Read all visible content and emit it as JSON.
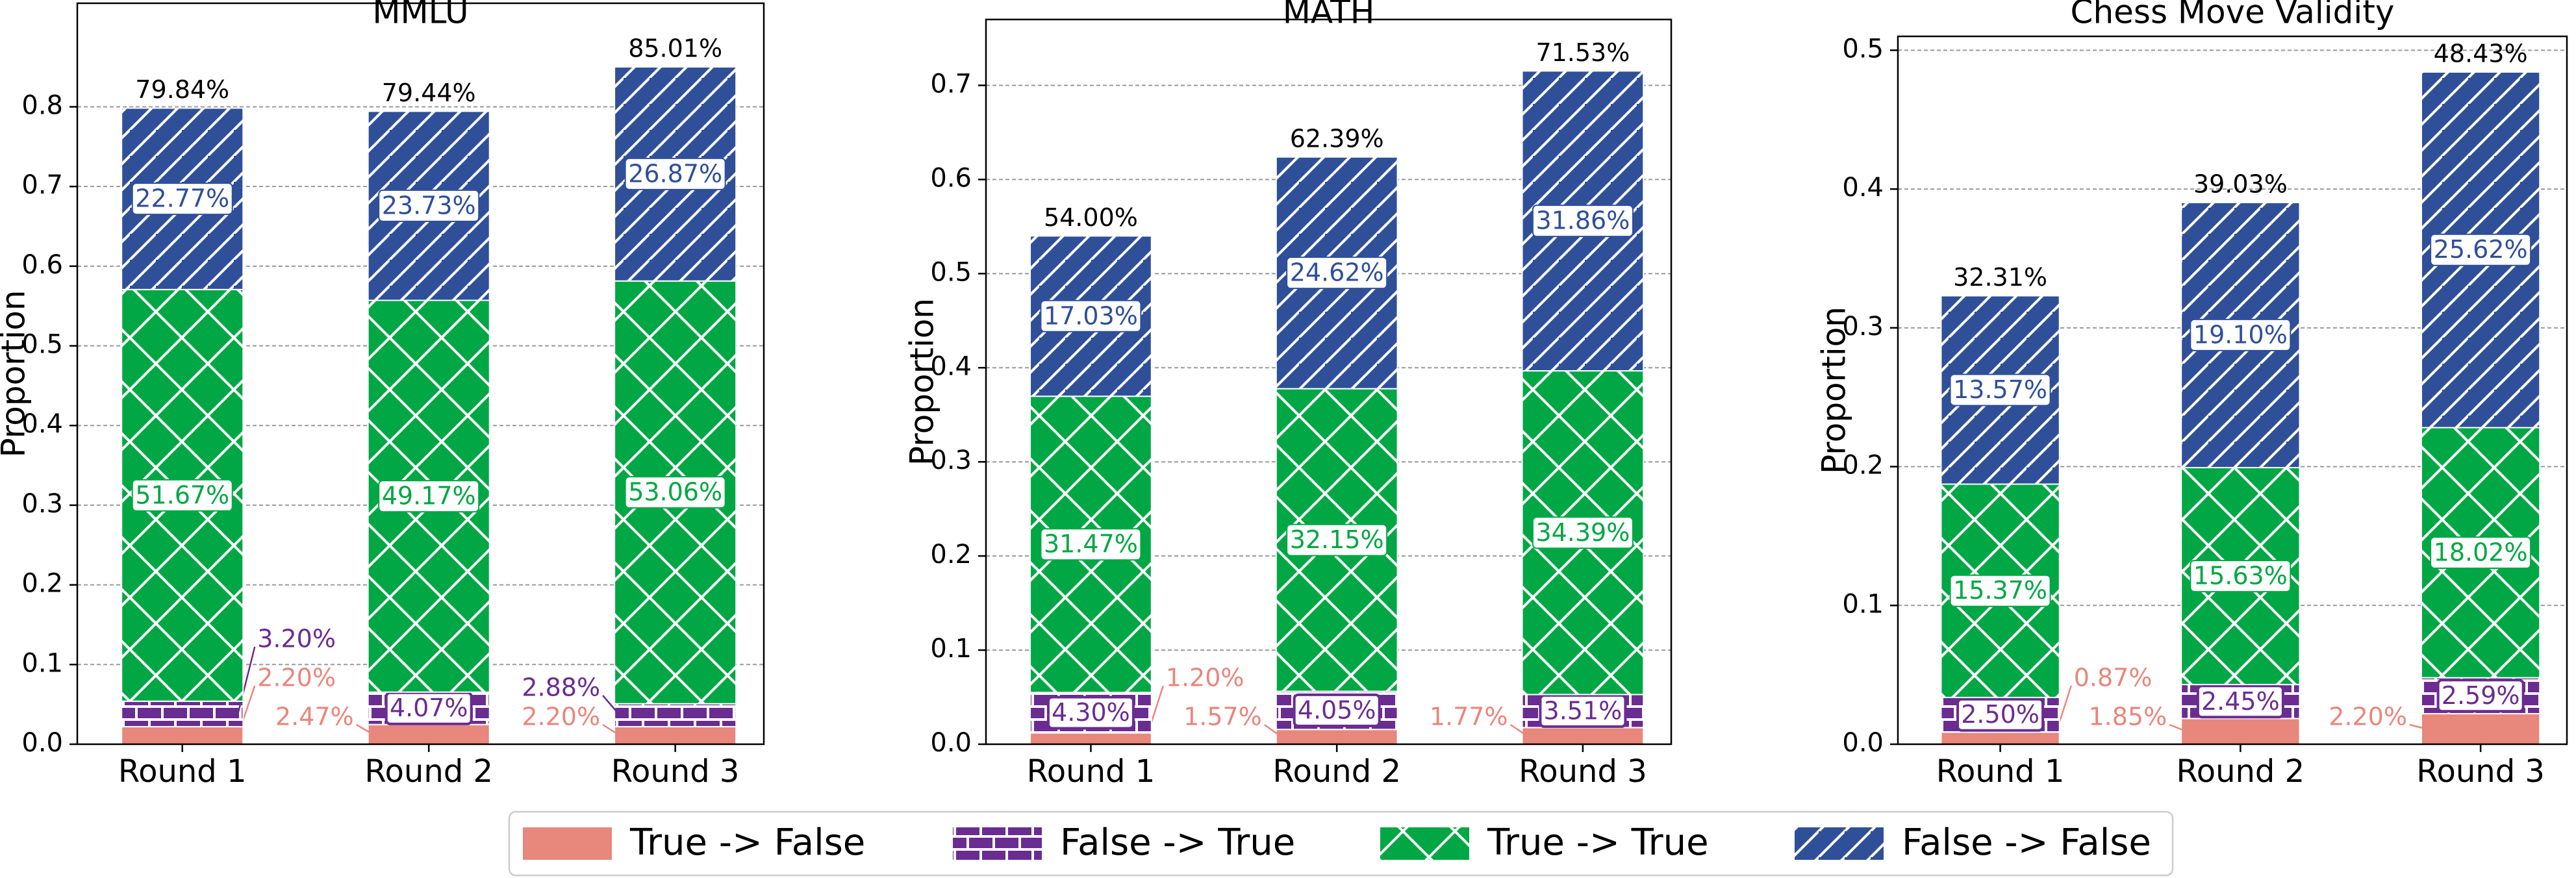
{
  "chart_data": [
    {
      "type": "bar",
      "title": "MMLU",
      "ylabel": "Proportion",
      "categories": [
        "Round 1",
        "Round 2",
        "Round 3"
      ],
      "series": [
        {
          "name": "True -> False",
          "color": "#e8877c",
          "values": [
            0.022,
            0.0247,
            0.022
          ],
          "value_labels": [
            "2.20%",
            "2.47%",
            "2.20%"
          ]
        },
        {
          "name": "False -> True",
          "color": "#6a2c91",
          "values": [
            0.032,
            0.0407,
            0.0288
          ],
          "value_labels": [
            "3.20%",
            "4.07%",
            "2.88%"
          ]
        },
        {
          "name": "True -> True",
          "color": "#00a744",
          "values": [
            0.5167,
            0.4917,
            0.5306
          ],
          "value_labels": [
            "51.67%",
            "49.17%",
            "53.06%"
          ]
        },
        {
          "name": "False -> False",
          "color": "#2f4f99",
          "values": [
            0.2277,
            0.2373,
            0.2687
          ],
          "value_labels": [
            "22.77%",
            "23.73%",
            "26.87%"
          ]
        }
      ],
      "totals": [
        0.7984,
        0.7944,
        0.8501
      ],
      "total_labels": [
        "79.84%",
        "79.44%",
        "85.01%"
      ],
      "ylim": [
        0,
        0.93
      ],
      "yticks": [
        {
          "value": 0,
          "label": "0.0"
        },
        0.1,
        0.2,
        0.3,
        0.4,
        0.5,
        0.6,
        0.7,
        0.8
      ],
      "grid": true
    },
    {
      "type": "bar",
      "title": "MATH",
      "ylabel": "Proportion",
      "categories": [
        "Round 1",
        "Round 2",
        "Round 3"
      ],
      "series": [
        {
          "name": "True -> False",
          "color": "#e8877c",
          "values": [
            0.012,
            0.0157,
            0.0177
          ],
          "value_labels": [
            "1.20%",
            "1.57%",
            "1.77%"
          ]
        },
        {
          "name": "False -> True",
          "color": "#6a2c91",
          "values": [
            0.043,
            0.0405,
            0.0351
          ],
          "value_labels": [
            "4.30%",
            "4.05%",
            "3.51%"
          ]
        },
        {
          "name": "True -> True",
          "color": "#00a744",
          "values": [
            0.3147,
            0.3215,
            0.3439
          ],
          "value_labels": [
            "31.47%",
            "32.15%",
            "34.39%"
          ]
        },
        {
          "name": "False -> False",
          "color": "#2f4f99",
          "values": [
            0.1703,
            0.2462,
            0.3186
          ],
          "value_labels": [
            "17.03%",
            "24.62%",
            "31.86%"
          ]
        }
      ],
      "totals": [
        0.54,
        0.6239,
        0.7153
      ],
      "total_labels": [
        "54.00%",
        "62.39%",
        "71.53%"
      ],
      "ylim": [
        0,
        0.77
      ],
      "yticks": [
        {
          "value": 0,
          "label": "0.0"
        },
        0.1,
        0.2,
        0.3,
        0.4,
        0.5,
        0.6,
        0.7
      ],
      "grid": true
    },
    {
      "type": "bar",
      "title": "Chess Move Validity",
      "ylabel": "Proportion",
      "categories": [
        "Round 1",
        "Round 2",
        "Round 3"
      ],
      "series": [
        {
          "name": "True -> False",
          "color": "#e8877c",
          "values": [
            0.0087,
            0.0185,
            0.022
          ],
          "value_labels": [
            "0.87%",
            "1.85%",
            "2.20%"
          ]
        },
        {
          "name": "False -> True",
          "color": "#6a2c91",
          "values": [
            0.025,
            0.0245,
            0.0259
          ],
          "value_labels": [
            "2.50%",
            "2.45%",
            "2.59%"
          ]
        },
        {
          "name": "True -> True",
          "color": "#00a744",
          "values": [
            0.1537,
            0.1563,
            0.1802
          ],
          "value_labels": [
            "15.37%",
            "15.63%",
            "18.02%"
          ]
        },
        {
          "name": "False -> False",
          "color": "#2f4f99",
          "values": [
            0.1357,
            0.191,
            0.2562
          ],
          "value_labels": [
            "13.57%",
            "19.10%",
            "25.62%"
          ]
        }
      ],
      "totals": [
        0.3231,
        0.3903,
        0.4843
      ],
      "total_labels": [
        "32.31%",
        "39.03%",
        "48.43%"
      ],
      "ylim": [
        0,
        0.51
      ],
      "yticks": [
        {
          "value": 0,
          "label": "0.0"
        },
        0.1,
        0.2,
        0.3,
        0.4,
        0.5
      ],
      "grid": true
    }
  ]
}
